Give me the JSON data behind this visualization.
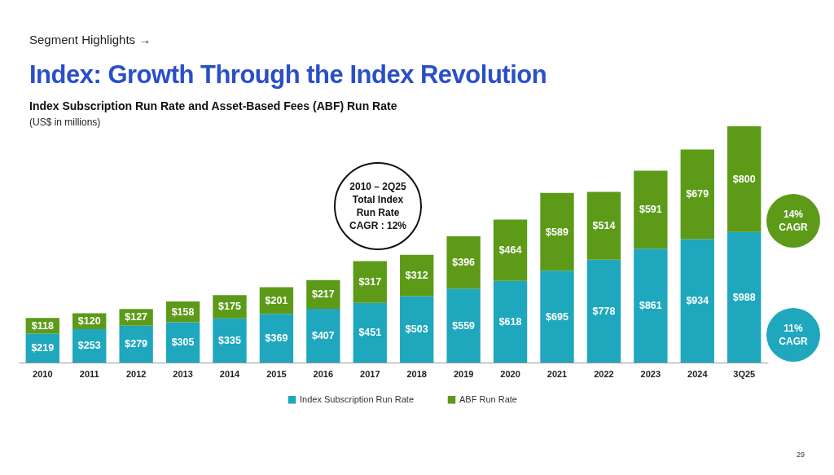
{
  "chart_data": {
    "type": "bar",
    "stacked": true,
    "title": "Index: Growth Through the Index Revolution",
    "subtitle": "Index Subscription Run Rate and Asset-Based Fees (ABF) Run Rate",
    "annotations": [
      "Segment Highlights →",
      "(US$ in millions)",
      "2010 – 2Q25 Total Index Run Rate CAGR : 12%",
      "14% CAGR",
      "11% CAGR",
      "29"
    ],
    "categories": [
      "2010",
      "2011",
      "2012",
      "2013",
      "2014",
      "2015",
      "2016",
      "2017",
      "2018",
      "2019",
      "2020",
      "2021",
      "2022",
      "2023",
      "2024",
      "3Q25"
    ],
    "series": [
      {
        "name": "Index Subscription Run Rate",
        "color": "#1ea7bd",
        "values": [
          219,
          253,
          279,
          305,
          335,
          369,
          407,
          451,
          503,
          559,
          618,
          695,
          778,
          861,
          934,
          988
        ],
        "value_labels": [
          "$219",
          "$253",
          "$279",
          "$305",
          "$335",
          "$369",
          "$407",
          "$451",
          "$503",
          "$559",
          "$618",
          "$695",
          "$778",
          "$861",
          "$934",
          "$988"
        ]
      },
      {
        "name": "ABF Run Rate",
        "color": "#5c9a18",
        "values": [
          118,
          120,
          127,
          158,
          175,
          201,
          217,
          317,
          312,
          396,
          464,
          589,
          514,
          591,
          679,
          800
        ],
        "value_labels": [
          "$118",
          "$120",
          "$127",
          "$158",
          "$175",
          "$201",
          "$217",
          "$317",
          "$312",
          "$396",
          "$464",
          "$589",
          "$514",
          "$591",
          "$679",
          "$800"
        ]
      }
    ],
    "legend": "bottom"
  }
}
